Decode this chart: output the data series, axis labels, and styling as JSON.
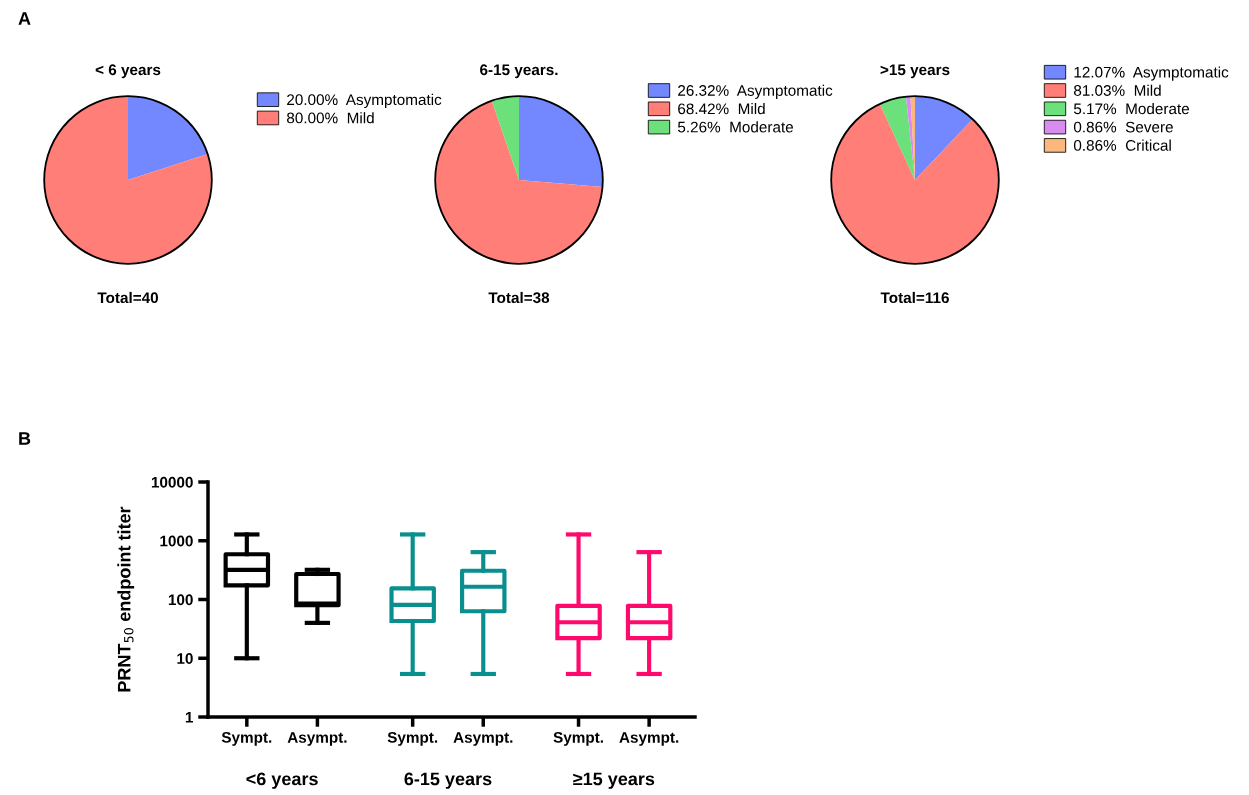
{
  "chart_data": [
    {
      "type": "pie",
      "title": "< 6 years",
      "annotations": [
        "A",
        "Total=40"
      ],
      "categories": [
        "Asymptomatic",
        "Mild"
      ],
      "values": [
        20.0,
        80.0
      ],
      "value_labels": [
        "20.00%",
        "80.00%"
      ],
      "colors": [
        "#7387ff",
        "#ff7f78"
      ],
      "legend": "right"
    },
    {
      "type": "pie",
      "title": "6-15 years.",
      "annotations": [
        "Total=38"
      ],
      "categories": [
        "Asymptomatic",
        "Mild",
        "Moderate"
      ],
      "values": [
        26.32,
        68.42,
        5.26
      ],
      "value_labels": [
        "26.32%",
        "68.42%",
        "5.26%"
      ],
      "colors": [
        "#7387ff",
        "#ff7f78",
        "#6ce07a"
      ],
      "legend": "right"
    },
    {
      "type": "pie",
      "title": ">15 years",
      "annotations": [
        "Total=116"
      ],
      "categories": [
        "Asymptomatic",
        "Mild",
        "Moderate",
        "Severe",
        "Critical"
      ],
      "values": [
        12.07,
        81.03,
        5.17,
        0.86,
        0.86
      ],
      "value_labels": [
        "12.07%",
        "81.03%",
        "5.17%",
        "0.86%",
        "0.86%"
      ],
      "colors": [
        "#7387ff",
        "#ff7f78",
        "#6ce07a",
        "#d88cf0",
        "#fbb77c"
      ],
      "legend": "right"
    },
    {
      "type": "box",
      "annotations": [
        "B",
        "<6 years",
        "6-15 years",
        "≥15 years"
      ],
      "ylabel": "PRNT$_{50}$ endpoint titer",
      "log": "y",
      "ylim": [
        1,
        10000
      ],
      "yticks": [
        1,
        10,
        100,
        1000,
        10000
      ],
      "grid": false,
      "categories": [
        "Sympt.",
        "Asympt.",
        "Sympt.",
        "Asympt.",
        "Sympt.",
        "Asympt."
      ],
      "series": [
        {
          "color": "#000000",
          "boxes": [
            {
              "low": 10,
              "q1": 174,
              "median": 320,
              "q3": 590,
              "high": 1280
            },
            {
              "low": 40,
              "q1": 80,
              "median": 85,
              "q3": 272,
              "high": 320
            },
            null,
            null,
            null,
            null
          ]
        },
        {
          "color": "#0a8f8f",
          "boxes": [
            null,
            null,
            {
              "low": 5.4,
              "q1": 43,
              "median": 81,
              "q3": 155,
              "high": 1280
            },
            {
              "low": 5.4,
              "q1": 63,
              "median": 165,
              "q3": 309,
              "high": 640
            },
            null,
            null
          ]
        },
        {
          "color": "#ff0a6c",
          "boxes": [
            null,
            null,
            null,
            null,
            {
              "low": 5.4,
              "q1": 22,
              "median": 41,
              "q3": 78,
              "high": 1280
            },
            {
              "low": 5.4,
              "q1": 22,
              "median": 41,
              "q3": 78,
              "high": 640
            }
          ]
        }
      ]
    }
  ]
}
